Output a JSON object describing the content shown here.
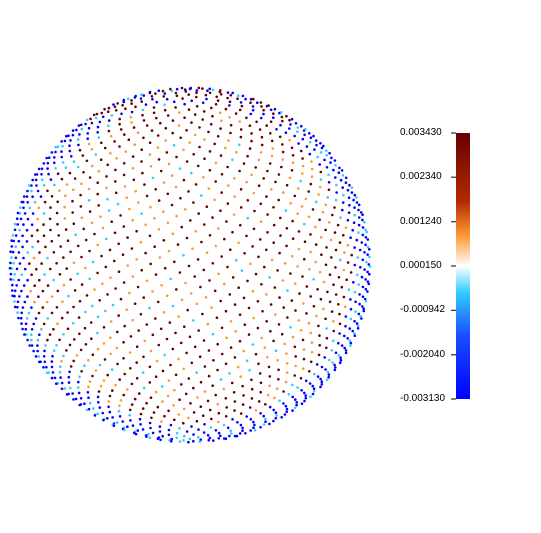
{
  "chart_data": {
    "type": "scatter",
    "title": "",
    "xlabel": "",
    "ylabel": "",
    "description_of_marks": "point cloud of a sphere viewed from the front, each point colored by a scalar value",
    "value_range": [
      -0.00313,
      0.00343
    ],
    "colorbar": {
      "position": "right",
      "tick_labels": [
        "0.003430",
        "0.002340",
        "0.001240",
        "0.000150",
        "-0.000942",
        "-0.002040",
        "-0.003130"
      ],
      "tick_values": [
        0.00343,
        0.00234,
        0.00124,
        0.00015,
        -0.000942,
        -0.00204,
        -0.00313
      ],
      "color_stops": [
        {
          "value": -0.00313,
          "color": "#0000ff"
        },
        {
          "value": -0.00157,
          "color": "#1a4dff"
        },
        {
          "value": -0.0005,
          "color": "#33ccff"
        },
        {
          "value": 0.00015,
          "color": "#ffffff"
        },
        {
          "value": 0.0009,
          "color": "#ff9933"
        },
        {
          "value": 0.00175,
          "color": "#b32a00"
        },
        {
          "value": 0.00343,
          "color": "#660000"
        }
      ]
    },
    "point_colors": {
      "equator_band": "#660000",
      "mid_latitude": "#ff9933",
      "near_zero": "#33ccff",
      "limb": "#0000ff"
    }
  }
}
